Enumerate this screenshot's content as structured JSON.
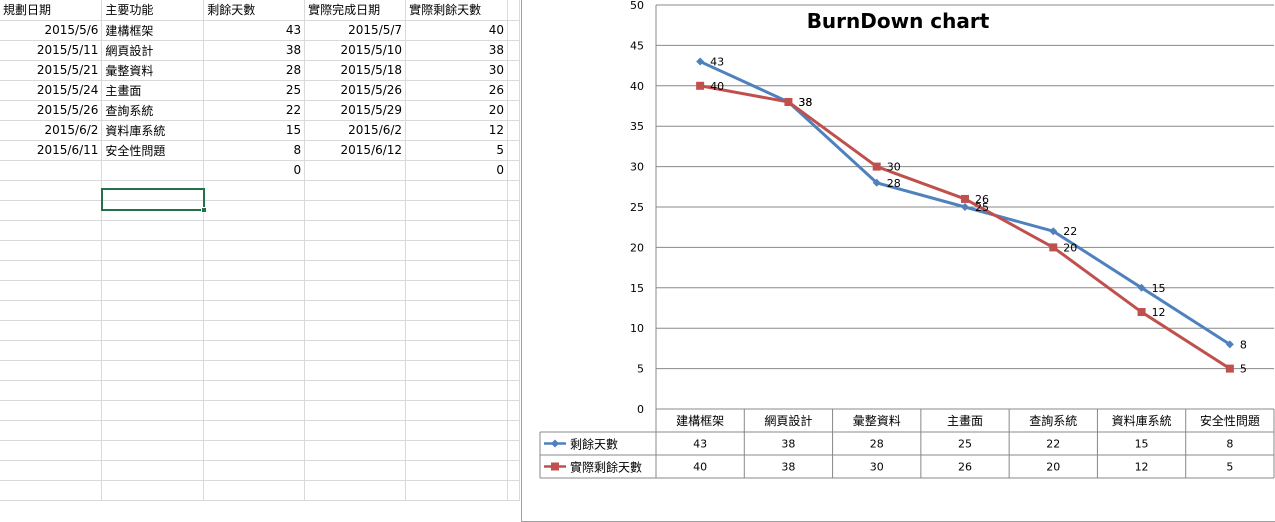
{
  "sheet": {
    "headers": [
      "規劃日期",
      "主要功能",
      "剩餘天數",
      "實際完成日期",
      "實際剩餘天數"
    ],
    "rows": [
      [
        "2015/5/6",
        "建構框架",
        "43",
        "2015/5/7",
        "40"
      ],
      [
        "2015/5/11",
        "網頁設計",
        "38",
        "2015/5/10",
        "38"
      ],
      [
        "2015/5/21",
        "彙整資料",
        "28",
        "2015/5/18",
        "30"
      ],
      [
        "2015/5/24",
        "主畫面",
        "25",
        "2015/5/26",
        "26"
      ],
      [
        "2015/5/26",
        "查詢系統",
        "22",
        "2015/5/29",
        "20"
      ],
      [
        "2015/6/2",
        "資料庫系統",
        "15",
        "2015/6/2",
        "12"
      ],
      [
        "2015/6/11",
        "安全性問題",
        "8",
        "2015/6/12",
        "5"
      ],
      [
        "",
        "",
        "0",
        "",
        "0"
      ]
    ]
  },
  "chart_data": {
    "type": "line",
    "title": "BurnDown chart",
    "categories": [
      "建構框架",
      "網頁設計",
      "彙整資料",
      "主畫面",
      "查詢系統",
      "資料庫系統",
      "安全性問題"
    ],
    "series": [
      {
        "name": "剩餘天數",
        "values": [
          43,
          38,
          28,
          25,
          22,
          15,
          8
        ],
        "color": "#4f81bd",
        "marker": "diamond"
      },
      {
        "name": "實際剩餘天數",
        "values": [
          40,
          38,
          30,
          26,
          20,
          12,
          5
        ],
        "color": "#c0504d",
        "marker": "square"
      }
    ],
    "ylim": [
      0,
      50
    ],
    "yticks": [
      0,
      5,
      10,
      15,
      20,
      25,
      30,
      35,
      40,
      45,
      50
    ],
    "grid": true,
    "legend": "data-table-below"
  }
}
